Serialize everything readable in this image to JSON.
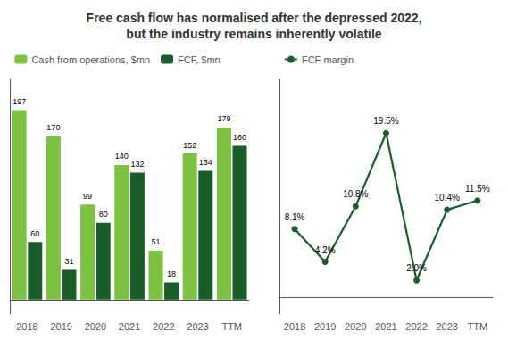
{
  "chart_data": [
    {
      "type": "bar",
      "title": "Free cash flow has normalised after the depressed 2022,\nbut the industry remains inherently volatile",
      "categories": [
        "2018",
        "2019",
        "2020",
        "2021",
        "2022",
        "2023",
        "TTM"
      ],
      "series": [
        {
          "name": "Cash from operations, $mn",
          "color": "#7dc142",
          "values": [
            197,
            170,
            99,
            140,
            51,
            152,
            179
          ]
        },
        {
          "name": "FCF, $mn",
          "color": "#1a5c2a",
          "values": [
            60,
            31,
            80,
            132,
            18,
            134,
            160
          ]
        }
      ],
      "ylim": [
        -15,
        230
      ],
      "grid": false,
      "legend": "top",
      "data_labels": true,
      "tick_labels": "x"
    },
    {
      "type": "line",
      "categories": [
        "2018",
        "2019",
        "2020",
        "2021",
        "2022",
        "2023",
        "TTM"
      ],
      "series": [
        {
          "name": "FCF margin",
          "color": "#1a5c2a",
          "marker": "circle",
          "values": [
            8.1,
            4.2,
            10.8,
            19.5,
            2.0,
            10.4,
            11.5
          ],
          "value_labels": [
            "8.1%",
            "4.2%",
            "10.8%",
            "19.5%",
            "2.0%",
            "10.4%",
            "11.5%"
          ]
        }
      ],
      "ylim": [
        -2,
        26
      ],
      "grid": false,
      "legend": "top",
      "data_labels": true,
      "tick_labels": "x"
    }
  ]
}
